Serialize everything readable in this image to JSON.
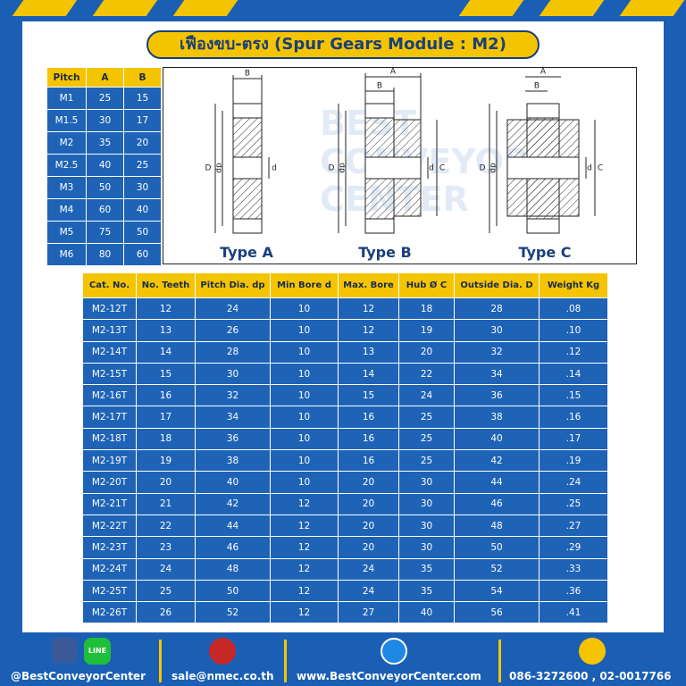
{
  "title": "เฟืองขบ-ตรง (Spur Gears Module : M2)",
  "pitch_table": {
    "header": [
      "Pitch",
      "A",
      "B"
    ],
    "rows": [
      [
        "M1",
        "25",
        "15"
      ],
      [
        "M1.5",
        "30",
        "17"
      ],
      [
        "M2",
        "35",
        "20"
      ],
      [
        "M2.5",
        "40",
        "25"
      ],
      [
        "M3",
        "50",
        "30"
      ],
      [
        "M4",
        "60",
        "40"
      ],
      [
        "M5",
        "75",
        "50"
      ],
      [
        "M6",
        "80",
        "60"
      ]
    ]
  },
  "diagrams": [
    {
      "name": "Type A",
      "labels": [
        "B",
        "D",
        "dp",
        "d"
      ]
    },
    {
      "name": "Type B",
      "labels": [
        "A",
        "B",
        "D",
        "dp",
        "d",
        "C"
      ]
    },
    {
      "name": "Type C",
      "labels": [
        "A",
        "B",
        "D",
        "dp",
        "d",
        "C"
      ]
    }
  ],
  "watermark": [
    "BEST",
    "CONVEYOR",
    "CENTER"
  ],
  "table": {
    "header": [
      "Cat. No.",
      "No. Teeth",
      "Pitch Dia. dp",
      "Min Bore d",
      "Max. Bore",
      "Hub Ø C",
      "Outside Dia. D",
      "Weight Kg"
    ],
    "rows": [
      [
        "M2-12T",
        "12",
        "24",
        "10",
        "12",
        "18",
        "28",
        ".08"
      ],
      [
        "M2-13T",
        "13",
        "26",
        "10",
        "12",
        "19",
        "30",
        ".10"
      ],
      [
        "M2-14T",
        "14",
        "28",
        "10",
        "13",
        "20",
        "32",
        ".12"
      ],
      [
        "M2-15T",
        "15",
        "30",
        "10",
        "14",
        "22",
        "34",
        ".14"
      ],
      [
        "M2-16T",
        "16",
        "32",
        "10",
        "15",
        "24",
        "36",
        ".15"
      ],
      [
        "M2-17T",
        "17",
        "34",
        "10",
        "16",
        "25",
        "38",
        ".16"
      ],
      [
        "M2-18T",
        "18",
        "36",
        "10",
        "16",
        "25",
        "40",
        ".17"
      ],
      [
        "M2-19T",
        "19",
        "38",
        "10",
        "16",
        "25",
        "42",
        ".19"
      ],
      [
        "M2-20T",
        "20",
        "40",
        "10",
        "20",
        "30",
        "44",
        ".24"
      ],
      [
        "M2-21T",
        "21",
        "42",
        "12",
        "20",
        "30",
        "46",
        ".25"
      ],
      [
        "M2-22T",
        "22",
        "44",
        "12",
        "20",
        "30",
        "48",
        ".27"
      ],
      [
        "M2-23T",
        "23",
        "46",
        "12",
        "20",
        "30",
        "50",
        ".29"
      ],
      [
        "M2-24T",
        "24",
        "48",
        "12",
        "24",
        "35",
        "52",
        ".33"
      ],
      [
        "M2-25T",
        "25",
        "50",
        "12",
        "24",
        "35",
        "54",
        ".36"
      ],
      [
        "M2-26T",
        "26",
        "52",
        "12",
        "27",
        "40",
        "56",
        ".41"
      ]
    ]
  },
  "footer": {
    "line_icon": "LINE",
    "facebook": "@BestConveyorCenter",
    "email": "sale@nmec.co.th",
    "website": "www.BestConveyorCenter.com",
    "phone": "086-3272600 , 02-0017766"
  }
}
